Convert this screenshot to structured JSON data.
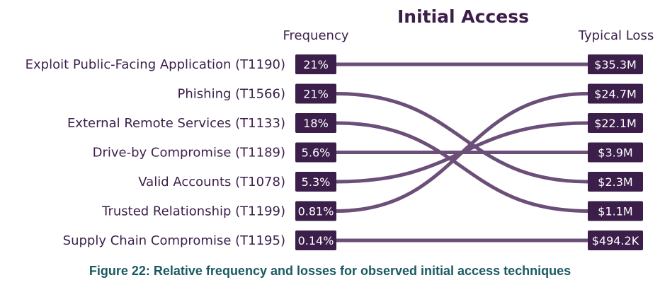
{
  "chart_data": {
    "type": "slopegraph",
    "title": "Initial Access",
    "left_header": "Frequency",
    "right_header": "Typical Loss",
    "rows": [
      {
        "technique": "Exploit Public-Facing Application (T1190)",
        "frequency": "21%",
        "frequency_value": 21
      },
      {
        "technique": "Phishing (T1566)",
        "frequency": "21%",
        "frequency_value": 21
      },
      {
        "technique": "External Remote Services (T1133)",
        "frequency": "18%",
        "frequency_value": 18
      },
      {
        "technique": "Drive-by Compromise (T1189)",
        "frequency": "5.6%",
        "frequency_value": 5.6
      },
      {
        "technique": "Valid Accounts (T1078)",
        "frequency": "5.3%",
        "frequency_value": 5.3
      },
      {
        "technique": "Trusted Relationship (T1199)",
        "frequency": "0.81%",
        "frequency_value": 0.81
      },
      {
        "technique": "Supply Chain Compromise (T1195)",
        "frequency": "0.14%",
        "frequency_value": 0.14
      }
    ],
    "losses": [
      {
        "label": "$35.3M",
        "value_usd_m": 35.3
      },
      {
        "label": "$24.7M",
        "value_usd_m": 24.7
      },
      {
        "label": "$22.1M",
        "value_usd_m": 22.1
      },
      {
        "label": "$3.9M",
        "value_usd_m": 3.9
      },
      {
        "label": "$2.3M",
        "value_usd_m": 2.3
      },
      {
        "label": "$1.1M",
        "value_usd_m": 1.1
      },
      {
        "label": "$494.2K",
        "value_usd_m": 0.4942
      }
    ],
    "links": [
      {
        "from": 0,
        "to": 0
      },
      {
        "from": 1,
        "to": 4
      },
      {
        "from": 2,
        "to": 5
      },
      {
        "from": 3,
        "to": 3
      },
      {
        "from": 4,
        "to": 2
      },
      {
        "from": 5,
        "to": 1
      },
      {
        "from": 6,
        "to": 6
      }
    ]
  },
  "caption": "Figure 22: Relative frequency and losses for observed initial access techniques",
  "colors": {
    "badge": "#3b1f4a",
    "link": "#6b4f78",
    "text": "#3b1f4a",
    "caption": "#1a5a63"
  }
}
